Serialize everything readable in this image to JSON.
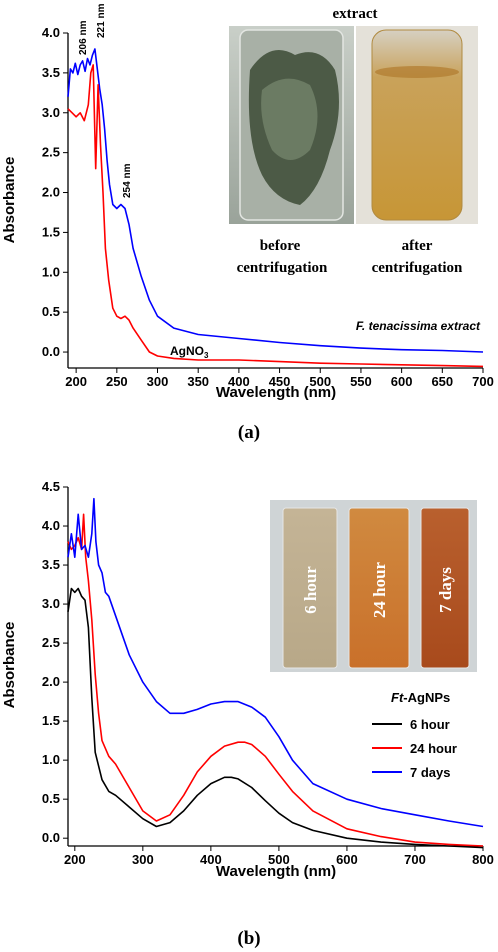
{
  "panels": {
    "a_label": "(a)",
    "b_label": "(b)"
  },
  "photo_a": {
    "title": "extract",
    "left_caption_1": "before",
    "left_caption_2": "centrifugation",
    "right_caption_1": "after",
    "right_caption_2": "centrifugation"
  },
  "photo_b": {
    "vials": [
      "6 hour",
      "24 hour",
      "7 days"
    ]
  },
  "chart_data": [
    {
      "type": "line",
      "panel": "(a)",
      "xlabel": "Wavelength (nm)",
      "ylabel": "Absorbance",
      "xlim": [
        190,
        700
      ],
      "ylim": [
        -0.2,
        4.0
      ],
      "xticks": [
        200,
        250,
        300,
        350,
        400,
        450,
        500,
        550,
        600,
        650,
        700
      ],
      "yticks": [
        "0.0",
        "0.5",
        "1.0",
        "1.5",
        "2.0",
        "2.5",
        "3.0",
        "3.5",
        "4.0"
      ],
      "annotations": [
        "206 nm",
        "221 nm",
        "254 nm"
      ],
      "series": [
        {
          "name": "F. tenacissima extract",
          "color": "#0000ff",
          "x": [
            190,
            193,
            196,
            199,
            202,
            205,
            208,
            211,
            214,
            217,
            220,
            223,
            226,
            229,
            232,
            235,
            238,
            241,
            245,
            250,
            255,
            260,
            265,
            270,
            280,
            290,
            300,
            320,
            350,
            400,
            450,
            500,
            550,
            600,
            650,
            700
          ],
          "y": [
            3.2,
            3.55,
            3.5,
            3.62,
            3.48,
            3.6,
            3.65,
            3.52,
            3.68,
            3.6,
            3.72,
            3.8,
            3.55,
            3.3,
            3.1,
            2.8,
            2.4,
            2.1,
            1.85,
            1.8,
            1.85,
            1.8,
            1.6,
            1.3,
            0.95,
            0.65,
            0.45,
            0.3,
            0.22,
            0.17,
            0.12,
            0.08,
            0.05,
            0.03,
            0.02,
            0.0
          ]
        },
        {
          "name": "AgNO3",
          "color": "#ff0000",
          "x": [
            190,
            195,
            200,
            205,
            210,
            215,
            218,
            221,
            224,
            227,
            230,
            233,
            236,
            240,
            245,
            250,
            255,
            260,
            265,
            270,
            280,
            290,
            300,
            320,
            350,
            400,
            450,
            500,
            550,
            600,
            650,
            700
          ],
          "y": [
            3.05,
            3.0,
            2.95,
            3.0,
            2.9,
            3.1,
            3.5,
            3.6,
            2.3,
            3.35,
            2.6,
            2.0,
            1.3,
            0.9,
            0.55,
            0.45,
            0.42,
            0.45,
            0.4,
            0.3,
            0.15,
            0.0,
            -0.05,
            -0.08,
            -0.1,
            -0.1,
            -0.12,
            -0.14,
            -0.15,
            -0.16,
            -0.17,
            -0.18
          ]
        }
      ],
      "series_labels": [
        "F. tenacissima extract",
        "AgNO3"
      ]
    },
    {
      "type": "line",
      "panel": "(b)",
      "xlabel": "Wavelength (nm)",
      "ylabel": "Absorbance",
      "xlim": [
        190,
        800
      ],
      "ylim": [
        -0.1,
        4.5
      ],
      "xticks": [
        200,
        300,
        400,
        500,
        600,
        700,
        800
      ],
      "yticks": [
        "0.0",
        "0.5",
        "1.0",
        "1.5",
        "2.0",
        "2.5",
        "3.0",
        "3.5",
        "4.0",
        "4.5"
      ],
      "legend_title": "Ft-AgNPs",
      "legend_position": "right",
      "series": [
        {
          "name": "6 hour",
          "color": "#000000",
          "x": [
            190,
            195,
            200,
            205,
            210,
            215,
            220,
            225,
            230,
            240,
            250,
            260,
            280,
            300,
            320,
            340,
            360,
            380,
            400,
            420,
            430,
            440,
            460,
            480,
            500,
            520,
            550,
            600,
            650,
            700,
            750,
            800
          ],
          "y": [
            2.9,
            3.2,
            3.15,
            3.2,
            3.1,
            3.05,
            2.7,
            1.8,
            1.1,
            0.75,
            0.6,
            0.55,
            0.4,
            0.25,
            0.15,
            0.2,
            0.35,
            0.55,
            0.7,
            0.78,
            0.78,
            0.76,
            0.65,
            0.48,
            0.32,
            0.2,
            0.1,
            0.0,
            -0.05,
            -0.08,
            -0.1,
            -0.12
          ]
        },
        {
          "name": "24 hour",
          "color": "#ff0000",
          "x": [
            190,
            195,
            200,
            205,
            210,
            213,
            216,
            220,
            225,
            230,
            235,
            240,
            250,
            260,
            280,
            300,
            320,
            340,
            360,
            380,
            400,
            420,
            440,
            450,
            460,
            480,
            500,
            520,
            550,
            600,
            650,
            700,
            750,
            800
          ],
          "y": [
            3.8,
            3.7,
            3.75,
            3.85,
            3.7,
            4.15,
            3.6,
            3.3,
            2.8,
            2.1,
            1.6,
            1.25,
            1.05,
            0.95,
            0.65,
            0.35,
            0.22,
            0.3,
            0.55,
            0.85,
            1.05,
            1.18,
            1.23,
            1.23,
            1.2,
            1.05,
            0.82,
            0.6,
            0.35,
            0.12,
            0.02,
            -0.05,
            -0.08,
            -0.1
          ]
        },
        {
          "name": "7 days",
          "color": "#0000ff",
          "x": [
            190,
            195,
            200,
            205,
            210,
            215,
            220,
            225,
            228,
            231,
            235,
            240,
            245,
            250,
            260,
            270,
            280,
            300,
            320,
            340,
            360,
            380,
            400,
            420,
            440,
            460,
            480,
            500,
            520,
            550,
            600,
            650,
            700,
            750,
            800
          ],
          "y": [
            3.6,
            3.9,
            3.6,
            4.15,
            3.7,
            3.75,
            3.6,
            3.9,
            4.35,
            3.8,
            3.5,
            3.4,
            3.15,
            3.1,
            2.85,
            2.6,
            2.35,
            2.0,
            1.75,
            1.6,
            1.6,
            1.65,
            1.72,
            1.75,
            1.75,
            1.68,
            1.55,
            1.3,
            1.0,
            0.7,
            0.5,
            0.38,
            0.3,
            0.22,
            0.15
          ]
        }
      ]
    }
  ]
}
